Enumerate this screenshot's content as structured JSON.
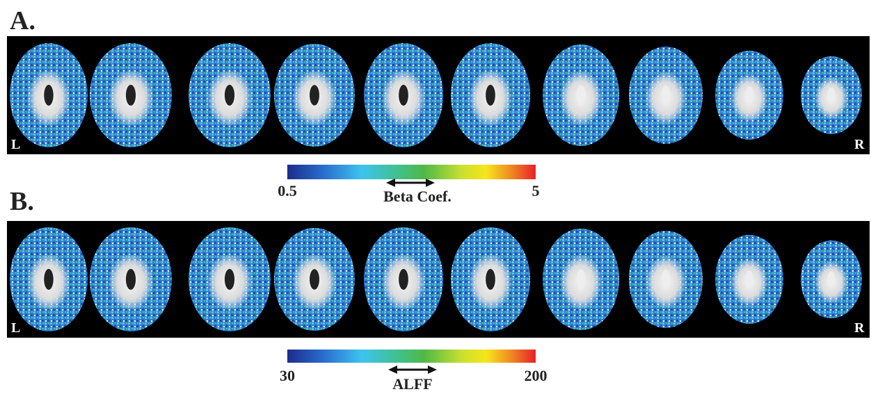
{
  "panels": [
    {
      "label": "A.",
      "left": "L",
      "right": "R",
      "colorbar": {
        "min": "0.5",
        "max": "5",
        "title": "Beta Coef."
      }
    },
    {
      "label": "B.",
      "left": "L",
      "right": "R",
      "colorbar": {
        "min": "30",
        "max": "200",
        "title": "ALFF"
      }
    }
  ]
}
